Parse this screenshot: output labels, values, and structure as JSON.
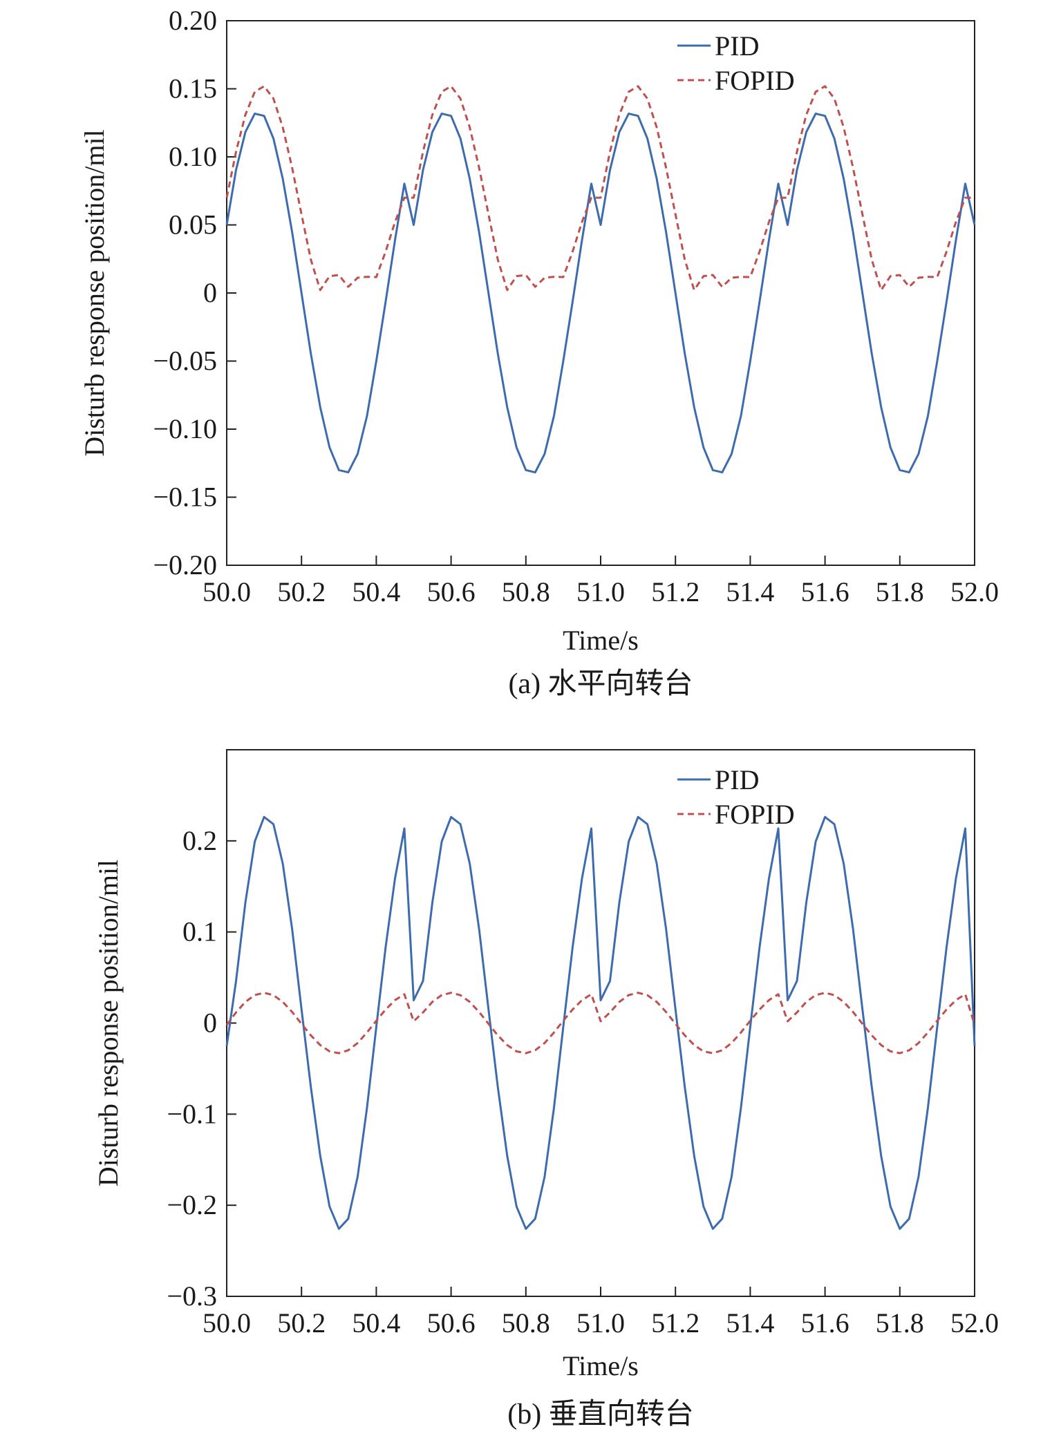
{
  "chart_data": [
    {
      "type": "line",
      "xlabel": "Time/s",
      "ylabel": "Disturb response position/mil",
      "caption": "(a) 水平向转台",
      "xlim": [
        50.0,
        52.0
      ],
      "ylim": [
        -0.2,
        0.2
      ],
      "x_ticks": [
        "50.0",
        "50.2",
        "50.4",
        "50.6",
        "50.8",
        "51.0",
        "51.2",
        "51.4",
        "51.6",
        "51.8",
        "52.0"
      ],
      "y_ticks": [
        "0.20",
        "0.15",
        "0.10",
        "0.05",
        "0",
        "−0.05",
        "−0.10",
        "−0.15",
        "−0.20"
      ],
      "legend_position": "top-right",
      "series": [
        {
          "name": "PID",
          "color": "#3c6cad",
          "style": "solid",
          "x": [
            50.0,
            50.025,
            50.05,
            50.075,
            50.1,
            50.125,
            50.15,
            50.175,
            50.2,
            50.225,
            50.25,
            50.275,
            50.3,
            50.325,
            50.35,
            50.375,
            50.4,
            50.425,
            50.45,
            50.475,
            50.5,
            50.525,
            50.55,
            50.575,
            50.6,
            50.625,
            50.65,
            50.675,
            50.7,
            50.725,
            50.75,
            50.775,
            50.8,
            50.825,
            50.85,
            50.875,
            50.9,
            50.925,
            50.95,
            50.975,
            51.0,
            51.025,
            51.05,
            51.075,
            51.1,
            51.125,
            51.15,
            51.175,
            51.2,
            51.225,
            51.25,
            51.275,
            51.3,
            51.325,
            51.35,
            51.375,
            51.4,
            51.425,
            51.45,
            51.475,
            51.5,
            51.525,
            51.55,
            51.575,
            51.6,
            51.625,
            51.65,
            51.675,
            51.7,
            51.725,
            51.75,
            51.775,
            51.8,
            51.825,
            51.85,
            51.875,
            51.9,
            51.925,
            51.95,
            51.975,
            52.0
          ],
          "y": [
            0.05,
            0.0904,
            0.1182,
            0.1318,
            0.1301,
            0.1135,
            0.0839,
            0.0445,
            0.0,
            -0.0445,
            -0.0839,
            -0.1135,
            -0.1301,
            -0.1318,
            -0.1182,
            -0.0904,
            -0.05,
            -0.0064,
            0.0389,
            0.0803,
            0.05,
            0.0904,
            0.1182,
            0.1318,
            0.1301,
            0.1135,
            0.0839,
            0.0445,
            0.0,
            -0.0445,
            -0.0839,
            -0.1135,
            -0.1301,
            -0.1318,
            -0.1182,
            -0.0904,
            -0.05,
            -0.0064,
            0.0389,
            0.0803,
            0.05,
            0.0904,
            0.1182,
            0.1318,
            0.1301,
            0.1135,
            0.0839,
            0.0445,
            0.0,
            -0.0445,
            -0.0839,
            -0.1135,
            -0.1301,
            -0.1318,
            -0.1182,
            -0.0904,
            -0.05,
            -0.0064,
            0.0389,
            0.0803,
            0.05,
            0.0904,
            0.1182,
            0.1318,
            0.1301,
            0.1135,
            0.0839,
            0.0445,
            0.0,
            -0.0445,
            -0.0839,
            -0.1135,
            -0.1301,
            -0.1318,
            -0.1182,
            -0.0904,
            -0.05,
            -0.0064,
            0.0389,
            0.0803,
            0.05
          ]
        },
        {
          "name": "FOPID",
          "color": "#c0504d",
          "style": "dashed",
          "x": [
            50.0,
            50.025,
            50.05,
            50.075,
            50.1,
            50.125,
            50.15,
            50.175,
            50.2,
            50.225,
            50.25,
            50.275,
            50.3,
            50.325,
            50.35,
            50.375,
            50.4,
            50.425,
            50.45,
            50.475,
            50.5,
            50.525,
            50.55,
            50.575,
            50.6,
            50.625,
            50.65,
            50.675,
            50.7,
            50.725,
            50.75,
            50.775,
            50.8,
            50.825,
            50.85,
            50.875,
            50.9,
            50.925,
            50.95,
            50.975,
            51.0,
            51.025,
            51.05,
            51.075,
            51.1,
            51.125,
            51.15,
            51.175,
            51.2,
            51.225,
            51.25,
            51.275,
            51.3,
            51.325,
            51.35,
            51.375,
            51.4,
            51.425,
            51.45,
            51.475,
            51.5,
            51.525,
            51.55,
            51.575,
            51.6,
            51.625,
            51.65,
            51.675,
            51.7,
            51.725,
            51.75,
            51.775,
            51.8,
            51.825,
            51.85,
            51.875,
            51.9,
            51.925,
            51.95,
            51.975,
            52.0
          ],
          "y": [
            0.07,
            0.1038,
            0.1309,
            0.1478,
            0.1519,
            0.1428,
            0.1217,
            0.0919,
            0.0578,
            0.0245,
            0.0022,
            0.0124,
            0.0132,
            0.0045,
            0.0112,
            0.0119,
            0.0117,
            0.0304,
            0.0522,
            0.07,
            0.07,
            0.1038,
            0.1309,
            0.1478,
            0.1519,
            0.1428,
            0.1217,
            0.0919,
            0.0578,
            0.0245,
            0.0022,
            0.0124,
            0.0132,
            0.0045,
            0.0112,
            0.0119,
            0.0117,
            0.0304,
            0.0522,
            0.07,
            0.07,
            0.1038,
            0.1309,
            0.1478,
            0.1519,
            0.1428,
            0.1217,
            0.0919,
            0.0578,
            0.0245,
            0.0022,
            0.0124,
            0.0132,
            0.0045,
            0.0112,
            0.0119,
            0.0117,
            0.0304,
            0.0522,
            0.07,
            0.07,
            0.1038,
            0.1309,
            0.1478,
            0.1519,
            0.1428,
            0.1217,
            0.0919,
            0.0578,
            0.0245,
            0.0022,
            0.0124,
            0.0132,
            0.0045,
            0.0112,
            0.0119,
            0.0117,
            0.0304,
            0.0522,
            0.07,
            0.07
          ]
        }
      ]
    },
    {
      "type": "line",
      "xlabel": "Time/s",
      "ylabel": "Disturb response position/mil",
      "caption": "(b) 垂直向转台",
      "xlim": [
        50.0,
        52.0
      ],
      "ylim": [
        -0.3,
        0.3
      ],
      "x_ticks": [
        "50.0",
        "50.2",
        "50.4",
        "50.6",
        "50.8",
        "51.0",
        "51.2",
        "51.4",
        "51.6",
        "51.8",
        "52.0"
      ],
      "y_ticks": [
        "0.2",
        "0.1",
        "0",
        "−0.1",
        "−0.2",
        "−0.3"
      ],
      "legend_position": "top-right",
      "series": [
        {
          "name": "PID",
          "color": "#3c6cad",
          "style": "solid",
          "x": [
            50.0,
            50.025,
            50.05,
            50.075,
            50.1,
            50.125,
            50.15,
            50.175,
            50.2,
            50.225,
            50.25,
            50.275,
            50.3,
            50.325,
            50.35,
            50.375,
            50.4,
            50.425,
            50.45,
            50.475,
            50.5,
            50.525,
            50.55,
            50.575,
            50.6,
            50.625,
            50.65,
            50.675,
            50.7,
            50.725,
            50.75,
            50.775,
            50.8,
            50.825,
            50.85,
            50.875,
            50.9,
            50.925,
            50.95,
            50.975,
            51.0,
            51.025,
            51.05,
            51.075,
            51.1,
            51.125,
            51.15,
            51.175,
            51.2,
            51.225,
            51.25,
            51.275,
            51.3,
            51.325,
            51.35,
            51.375,
            51.4,
            51.425,
            51.45,
            51.475,
            51.5,
            51.525,
            51.55,
            51.575,
            51.6,
            51.625,
            51.65,
            51.675,
            51.7,
            51.725,
            51.75,
            51.775,
            51.8,
            51.825,
            51.85,
            51.875,
            51.9,
            51.925,
            51.95,
            51.975,
            52.0
          ],
          "y": [
            -0.025,
            0.0462,
            0.1322,
            0.1993,
            0.2262,
            0.2183,
            0.1751,
            0.1029,
            0.0153,
            -0.0701,
            -0.1458,
            -0.2015,
            -0.2259,
            -0.2148,
            -0.1687,
            -0.0933,
            -0.0043,
            0.0832,
            0.1588,
            0.2136,
            0.025,
            0.0462,
            0.1322,
            0.1993,
            0.2262,
            0.2183,
            0.1751,
            0.1029,
            0.0153,
            -0.0701,
            -0.1458,
            -0.2015,
            -0.2259,
            -0.2148,
            -0.1687,
            -0.0933,
            -0.0043,
            0.0832,
            0.1588,
            0.2136,
            0.025,
            0.0462,
            0.1322,
            0.1993,
            0.2262,
            0.2183,
            0.1751,
            0.1029,
            0.0153,
            -0.0701,
            -0.1458,
            -0.2015,
            -0.2259,
            -0.2148,
            -0.1687,
            -0.0933,
            -0.0043,
            0.0832,
            0.1588,
            0.2136,
            0.025,
            0.0462,
            0.1322,
            0.1993,
            0.2262,
            0.2183,
            0.1751,
            0.1029,
            0.0153,
            -0.0701,
            -0.1458,
            -0.2015,
            -0.2259,
            -0.2148,
            -0.1687,
            -0.0933,
            -0.0043,
            0.0832,
            0.1588,
            0.2136,
            -0.025
          ]
        },
        {
          "name": "FOPID",
          "color": "#c0504d",
          "style": "dashed",
          "x": [
            50.0,
            50.025,
            50.05,
            50.075,
            50.1,
            50.125,
            50.15,
            50.175,
            50.2,
            50.225,
            50.25,
            50.275,
            50.3,
            50.325,
            50.35,
            50.375,
            50.4,
            50.425,
            50.45,
            50.475,
            50.5,
            50.525,
            50.55,
            50.575,
            50.6,
            50.625,
            50.65,
            50.675,
            50.7,
            50.725,
            50.75,
            50.775,
            50.8,
            50.825,
            50.85,
            50.875,
            50.9,
            50.925,
            50.95,
            50.975,
            51.0,
            51.025,
            51.05,
            51.075,
            51.1,
            51.125,
            51.15,
            51.175,
            51.2,
            51.225,
            51.25,
            51.275,
            51.3,
            51.325,
            51.35,
            51.375,
            51.4,
            51.425,
            51.45,
            51.475,
            51.5,
            51.525,
            51.55,
            51.575,
            51.6,
            51.625,
            51.65,
            51.675,
            51.7,
            51.725,
            51.75,
            51.775,
            51.8,
            51.825,
            51.85,
            51.875,
            51.9,
            51.925,
            51.95,
            51.975,
            52.0
          ],
          "y": [
            -0.002,
            0.0117,
            0.0232,
            0.0307,
            0.0332,
            0.0306,
            0.0232,
            0.0121,
            -0.0008,
            -0.0135,
            -0.0242,
            -0.0311,
            -0.0331,
            -0.0299,
            -0.0219,
            -0.0104,
            0.0025,
            0.0149,
            0.0252,
            0.0316,
            0.002,
            0.0117,
            0.0232,
            0.0307,
            0.0332,
            0.0306,
            0.0232,
            0.0121,
            -0.0008,
            -0.0135,
            -0.0242,
            -0.0311,
            -0.0331,
            -0.0299,
            -0.0219,
            -0.0104,
            0.0025,
            0.0149,
            0.0252,
            0.0316,
            0.002,
            0.0117,
            0.0232,
            0.0307,
            0.0332,
            0.0306,
            0.0232,
            0.0121,
            -0.0008,
            -0.0135,
            -0.0242,
            -0.0311,
            -0.0331,
            -0.0299,
            -0.0219,
            -0.0104,
            0.0025,
            0.0149,
            0.0252,
            0.0316,
            0.002,
            0.0117,
            0.0232,
            0.0307,
            0.0332,
            0.0306,
            0.0232,
            0.0121,
            -0.0008,
            -0.0135,
            -0.0242,
            -0.0311,
            -0.0331,
            -0.0299,
            -0.0219,
            -0.0104,
            0.0025,
            0.0149,
            0.0252,
            0.0316,
            -0.002
          ]
        }
      ]
    }
  ]
}
